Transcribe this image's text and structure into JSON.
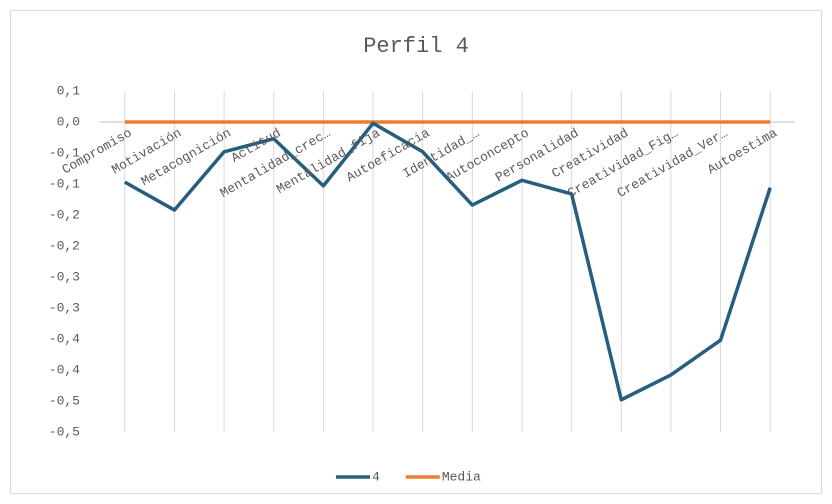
{
  "chart_data": {
    "type": "line",
    "title": "Perfil  4",
    "categories": [
      "Compromiso",
      "Motivación",
      "Metacognición",
      "Actitud",
      "Mentalidad_crec…",
      "Mentalidad_fija",
      "Autoeficacia",
      "Identidad_…",
      "Autoconcepto",
      "Personalidad",
      "Creatividad",
      "Creatividad_Fig…",
      "Creatividad_Ver…",
      "Autoestima"
    ],
    "series": [
      {
        "name": "4",
        "color": "#255e7e",
        "values": [
          -0.097,
          -0.142,
          -0.048,
          -0.027,
          -0.103,
          -0.002,
          -0.048,
          -0.134,
          -0.094,
          -0.116,
          -0.448,
          -0.408,
          -0.352,
          -0.106
        ]
      },
      {
        "name": "Media",
        "color": "#ed7d31",
        "values": [
          0,
          0,
          0,
          0,
          0,
          0,
          0,
          0,
          0,
          0,
          0,
          0,
          0,
          0
        ]
      }
    ],
    "ylim": [
      -0.5,
      0.05
    ],
    "yticks": [
      {
        "value": 0.05,
        "label": "0,1"
      },
      {
        "value": 0,
        "label": "0,0"
      },
      {
        "value": -0.05,
        "label": "-0,1"
      },
      {
        "value": -0.1,
        "label": "-0,1"
      },
      {
        "value": -0.15,
        "label": "-0,2"
      },
      {
        "value": -0.2,
        "label": "-0,2"
      },
      {
        "value": -0.25,
        "label": "-0,3"
      },
      {
        "value": -0.3,
        "label": "-0,3"
      },
      {
        "value": -0.35,
        "label": "-0,4"
      },
      {
        "value": -0.4,
        "label": "-0,4"
      },
      {
        "value": -0.45,
        "label": "-0,5"
      },
      {
        "value": -0.5,
        "label": "-0,5"
      }
    ],
    "grid": "vertical",
    "legend": "bottom"
  }
}
